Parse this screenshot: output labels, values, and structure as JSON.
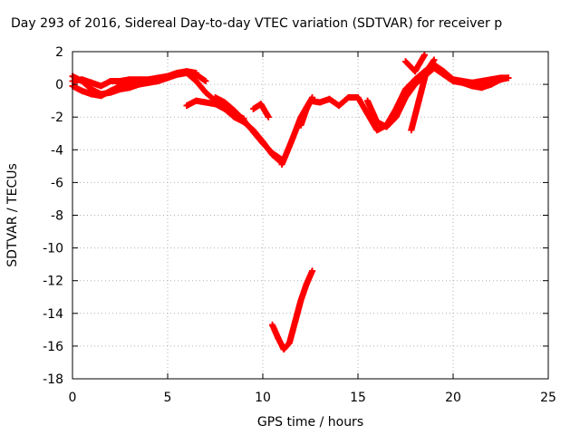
{
  "chart_data": {
    "type": "scatter",
    "title": "Day 293 of 2016, Sidereal Day-to-day VTEC variation (SDTVAR) for receiver p",
    "xlabel": "GPS time / hours",
    "ylabel": "SDTVAR / TECUs",
    "xlim": [
      0,
      25
    ],
    "ylim": [
      -18,
      2
    ],
    "x_ticks": [
      0,
      5,
      10,
      15,
      20,
      25
    ],
    "y_ticks": [
      2,
      0,
      -2,
      -4,
      -6,
      -8,
      -10,
      -12,
      -14,
      -16,
      -18
    ],
    "grid": true,
    "marker": "+",
    "color": "#ff0000",
    "series": [
      {
        "x": [
          0,
          0.5,
          1,
          1.5,
          2,
          2.5,
          3,
          3.5,
          4,
          4.5,
          5,
          5.5,
          6,
          6.5,
          7
        ],
        "y": [
          0.5,
          0.2,
          -0.3,
          -0.6,
          -0.5,
          -0.3,
          -0.2,
          0,
          0.1,
          0.2,
          0.4,
          0.6,
          0.7,
          0.6,
          0.2
        ]
      },
      {
        "x": [
          0,
          0.5,
          1,
          1.5,
          2,
          2.5,
          3,
          3.5,
          4,
          4.5,
          5,
          5.5,
          6,
          6.5
        ],
        "y": [
          0.2,
          0.3,
          0.1,
          -0.1,
          0.2,
          0.2,
          0.3,
          0.3,
          0.3,
          0.4,
          0.5,
          0.7,
          0.8,
          0.7
        ]
      },
      {
        "x": [
          0,
          0.5,
          1,
          1.5,
          2,
          2.5,
          3,
          3.5,
          4
        ],
        "y": [
          -0.1,
          -0.4,
          -0.6,
          -0.7,
          -0.4,
          -0.1,
          0,
          0.1,
          0.2
        ]
      },
      {
        "x": [
          6,
          6.5,
          7,
          7.5,
          8,
          8.5,
          9,
          9.5,
          10,
          10.5,
          11
        ],
        "y": [
          0.7,
          0.2,
          -0.5,
          -1.0,
          -1.5,
          -2.0,
          -2.3,
          -2.8,
          -3.5,
          -4.3,
          -4.8
        ]
      },
      {
        "x": [
          6,
          6.5,
          7,
          7.5,
          8,
          8.5,
          9
        ],
        "y": [
          -1.3,
          -1.0,
          -1.1,
          -1.2,
          -1.5,
          -1.8,
          -2.1
        ]
      },
      {
        "x": [
          7.5,
          8,
          8.5,
          9,
          9.5,
          10,
          10.5,
          11
        ],
        "y": [
          -0.8,
          -1.1,
          -1.6,
          -2.2,
          -2.9,
          -3.6,
          -4.2,
          -4.6
        ]
      },
      {
        "x": [
          9.5,
          9.9,
          10.3
        ],
        "y": [
          -1.5,
          -1.2,
          -2.0
        ]
      },
      {
        "x": [
          11,
          11.5,
          12,
          12.5,
          13,
          13.5,
          14,
          14.5,
          15
        ],
        "y": [
          -4.9,
          -3.5,
          -2.0,
          -1.0,
          -1.1,
          -0.9,
          -1.3,
          -0.8,
          -0.8
        ]
      },
      {
        "x": [
          12,
          12.3,
          12.6
        ],
        "y": [
          -2.5,
          -1.5,
          -0.8
        ]
      },
      {
        "x": [
          15,
          15.5,
          16,
          16.5,
          17,
          17.5,
          18,
          18.5,
          19,
          19.5,
          20,
          20.5,
          21,
          21.5,
          22,
          22.5,
          22.9
        ],
        "y": [
          -0.8,
          -1.8,
          -2.8,
          -2.5,
          -1.5,
          -0.3,
          0.3,
          0.8,
          1.2,
          0.8,
          0.3,
          0.2,
          0.1,
          0.2,
          0.3,
          0.4,
          0.4
        ]
      },
      {
        "x": [
          15.5,
          16,
          16.5,
          17,
          17.5,
          18,
          18.5,
          19,
          19.5,
          20,
          20.5,
          21,
          21.5,
          22,
          22.5,
          22.9
        ],
        "y": [
          -1.0,
          -2.3,
          -2.6,
          -2.0,
          -0.8,
          0,
          0.5,
          1.0,
          0.6,
          0.2,
          0.1,
          -0.1,
          -0.2,
          0,
          0.3,
          0.4
        ]
      },
      {
        "x": [
          17.8,
          18.2,
          18.6,
          19
        ],
        "y": [
          -2.8,
          -1.0,
          0.8,
          1.5
        ]
      },
      {
        "x": [
          17.5,
          18,
          18.5
        ],
        "y": [
          1.4,
          0.8,
          1.8
        ]
      },
      {
        "x": [
          10.5,
          10.8,
          11.1,
          11.4,
          11.7,
          12,
          12.3,
          12.6
        ],
        "y": [
          -14.7,
          -15.5,
          -16.2,
          -15.8,
          -14.5,
          -13.2,
          -12.2,
          -11.4
        ]
      }
    ]
  }
}
